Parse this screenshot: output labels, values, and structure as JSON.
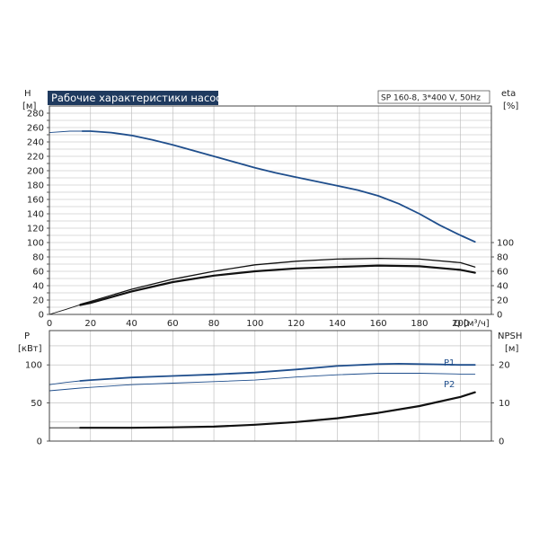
{
  "colors": {
    "blue": "#1f4e8c",
    "black": "#111111",
    "title_bg": "#1f3a5f"
  },
  "chart_data": [
    {
      "type": "line",
      "title": "Рабочие характеристики насоса",
      "subtitle": "SP 160-8, 3*400 V, 50Hz",
      "xlabel": "Q [м³/ч]",
      "ylabel_left": [
        "H",
        "[м]"
      ],
      "ylabel_right": [
        "eta",
        "[%]"
      ],
      "xlim": [
        0,
        215
      ],
      "ylim_left": [
        0,
        290
      ],
      "ylim_right": [
        0,
        290
      ],
      "x_ticks": [
        0,
        20,
        40,
        60,
        80,
        100,
        120,
        140,
        160,
        180,
        200
      ],
      "y_ticks_left": [
        0,
        10,
        20,
        30,
        40,
        50,
        60,
        70,
        80,
        90,
        100,
        110,
        120,
        130,
        140,
        150,
        160,
        170,
        180,
        190,
        200,
        210,
        220,
        230,
        240,
        250,
        260,
        270,
        280
      ],
      "y_tick_labels_left": [
        "0",
        "",
        "20",
        "",
        "40",
        "",
        "60",
        "",
        "80",
        "",
        "100",
        "",
        "120",
        "",
        "140",
        "",
        "160",
        "",
        "180",
        "",
        "200",
        "",
        "220",
        "",
        "240",
        "",
        "260",
        "",
        "280"
      ],
      "y_ticks_right": [
        0,
        20,
        40,
        60,
        80,
        100
      ],
      "grid": true,
      "series": [
        {
          "axis": "left",
          "color": "#1f4e8c",
          "width": 1.8,
          "x": [
            16,
            20,
            30,
            40,
            50,
            60,
            70,
            80,
            90,
            100,
            110,
            120,
            130,
            140,
            150,
            160,
            170,
            180,
            190,
            200,
            207
          ],
          "y": [
            255,
            255,
            253,
            249,
            243,
            236,
            228,
            220,
            212,
            204,
            197,
            191,
            185,
            179,
            173,
            165,
            154,
            140,
            124,
            110,
            101
          ]
        },
        {
          "axis": "left",
          "color": "#1f4e8c",
          "width": 0.9,
          "x": [
            0,
            10,
            16
          ],
          "y": [
            253,
            255,
            255
          ]
        },
        {
          "axis": "right",
          "color": "#111111",
          "width": 1.3,
          "x": [
            15,
            20,
            40,
            60,
            80,
            100,
            120,
            140,
            160,
            180,
            200,
            207
          ],
          "y": [
            14,
            18,
            35,
            49,
            60,
            69,
            74,
            77,
            78,
            77,
            72,
            66
          ]
        },
        {
          "axis": "right",
          "color": "#111111",
          "width": 2.2,
          "x": [
            15,
            20,
            40,
            60,
            80,
            100,
            120,
            140,
            160,
            180,
            200,
            207
          ],
          "y": [
            13,
            16,
            32,
            45,
            54,
            60,
            64,
            66,
            68,
            67,
            62,
            58
          ]
        },
        {
          "axis": "right",
          "color": "#111111",
          "width": 0.9,
          "x": [
            0,
            8,
            15
          ],
          "y": [
            0,
            7,
            13.5
          ]
        }
      ]
    },
    {
      "type": "line",
      "ylabel_left": [
        "P",
        "[кВт]"
      ],
      "ylabel_right": [
        "NPSH",
        "[м]"
      ],
      "xlim": [
        0,
        215
      ],
      "ylim_left": [
        0,
        145
      ],
      "ylim_right": [
        0,
        29
      ],
      "y_ticks_left": [
        0,
        50,
        100
      ],
      "y_ticks_right": [
        0,
        10,
        20
      ],
      "grid": true,
      "series": [
        {
          "name": "P1",
          "axis": "left",
          "color": "#1f4e8c",
          "width": 1.8,
          "x": [
            15,
            20,
            40,
            60,
            80,
            100,
            120,
            140,
            160,
            170,
            180,
            190,
            200,
            207
          ],
          "y": [
            79,
            80,
            83.5,
            85.5,
            87.5,
            90,
            94,
            98.5,
            101,
            101.5,
            101,
            100.5,
            100,
            100
          ]
        },
        {
          "name": "",
          "axis": "left",
          "color": "#1f4e8c",
          "width": 0.9,
          "x": [
            0,
            8,
            15
          ],
          "y": [
            74,
            77,
            79
          ]
        },
        {
          "name": "P2",
          "axis": "left",
          "color": "#1f4e8c",
          "width": 0.9,
          "x": [
            0,
            15,
            20,
            40,
            60,
            80,
            100,
            120,
            140,
            160,
            180,
            200,
            207
          ],
          "y": [
            66,
            69.5,
            70.5,
            74,
            76,
            78,
            80,
            84,
            87,
            89,
            89,
            88,
            88
          ]
        },
        {
          "name": "",
          "axis": "right",
          "color": "#111111",
          "width": 2.2,
          "x": [
            15,
            40,
            60,
            80,
            100,
            120,
            140,
            160,
            180,
            200,
            207
          ],
          "y": [
            3.5,
            3.5,
            3.6,
            3.8,
            4.3,
            5.0,
            6.0,
            7.4,
            9.2,
            11.6,
            12.8
          ]
        },
        {
          "name": "",
          "axis": "right",
          "color": "#111111",
          "width": 0.9,
          "x": [
            0,
            15
          ],
          "y": [
            3.5,
            3.5
          ]
        }
      ],
      "legend": [
        "P1",
        "P2"
      ]
    }
  ]
}
